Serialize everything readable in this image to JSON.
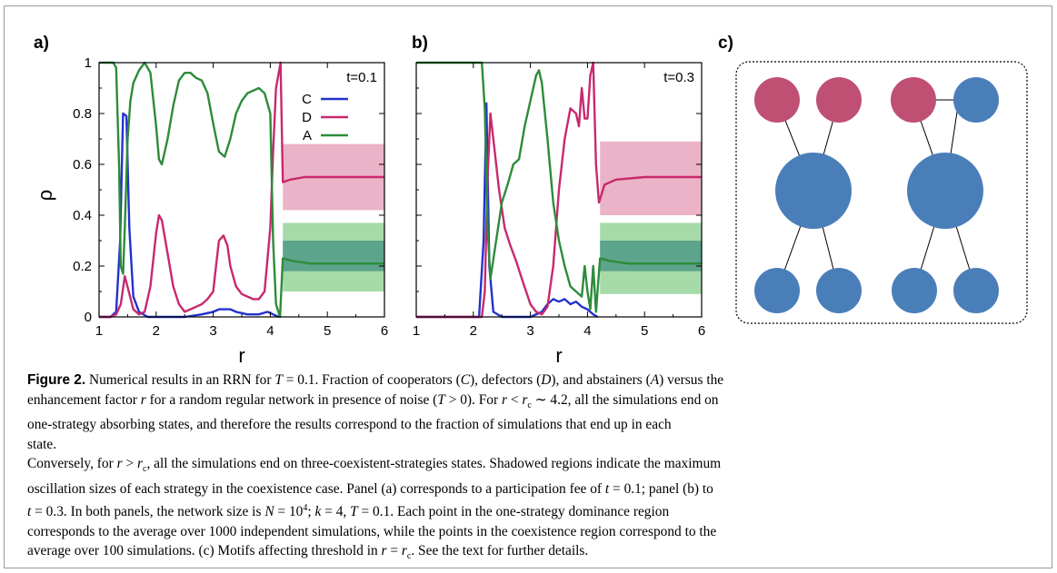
{
  "panels": {
    "a": {
      "label": "a)"
    },
    "b": {
      "label": "b)"
    },
    "c": {
      "label": "c)"
    }
  },
  "colors": {
    "C": "#2233cc",
    "D": "#c8296e",
    "A": "#2e8b3a",
    "D_band": "#e7a6bd",
    "A_band_outer": "#98d49a",
    "A_band_inner": "#4f9a86",
    "node_red": "#c04f74",
    "node_blue": "#4a7eb9"
  },
  "chart_data": [
    {
      "type": "line",
      "panel": "a",
      "annotation": "t=0.1",
      "xlabel": "r",
      "ylabel": "ρ",
      "xlim": [
        1,
        6
      ],
      "ylim": [
        0,
        1
      ],
      "xticks": [
        "1",
        "2",
        "3",
        "4",
        "5",
        "6"
      ],
      "yticks": [
        "0",
        "0.2",
        "0.4",
        "0.6",
        "0.8",
        "1"
      ],
      "legend": {
        "placement": "top-right",
        "entries": [
          "C",
          "D",
          "A"
        ]
      },
      "series": [
        {
          "name": "C",
          "points": [
            [
              1,
              0
            ],
            [
              1.2,
              0
            ],
            [
              1.3,
              0.02
            ],
            [
              1.37,
              0.3
            ],
            [
              1.42,
              0.8
            ],
            [
              1.48,
              0.79
            ],
            [
              1.53,
              0.35
            ],
            [
              1.6,
              0.08
            ],
            [
              1.7,
              0.02
            ],
            [
              1.85,
              0
            ],
            [
              2,
              0
            ],
            [
              2.5,
              0
            ],
            [
              2.8,
              0.01
            ],
            [
              3,
              0.02
            ],
            [
              3.1,
              0.03
            ],
            [
              3.2,
              0.03
            ],
            [
              3.3,
              0.03
            ],
            [
              3.4,
              0.02
            ],
            [
              3.6,
              0.01
            ],
            [
              3.8,
              0.01
            ],
            [
              3.95,
              0.02
            ],
            [
              4.05,
              0.01
            ],
            [
              4.15,
              0
            ]
          ]
        },
        {
          "name": "D",
          "points": [
            [
              1,
              0
            ],
            [
              1.2,
              0
            ],
            [
              1.3,
              0.01
            ],
            [
              1.38,
              0.05
            ],
            [
              1.45,
              0.16
            ],
            [
              1.52,
              0.1
            ],
            [
              1.6,
              0.03
            ],
            [
              1.7,
              0.01
            ],
            [
              1.8,
              0.02
            ],
            [
              1.9,
              0.12
            ],
            [
              2,
              0.33
            ],
            [
              2.05,
              0.4
            ],
            [
              2.1,
              0.38
            ],
            [
              2.2,
              0.25
            ],
            [
              2.3,
              0.12
            ],
            [
              2.4,
              0.05
            ],
            [
              2.5,
              0.02
            ],
            [
              2.6,
              0.03
            ],
            [
              2.7,
              0.04
            ],
            [
              2.8,
              0.05
            ],
            [
              2.9,
              0.07
            ],
            [
              3,
              0.1
            ],
            [
              3.05,
              0.2
            ],
            [
              3.1,
              0.3
            ],
            [
              3.18,
              0.32
            ],
            [
              3.25,
              0.28
            ],
            [
              3.3,
              0.2
            ],
            [
              3.4,
              0.12
            ],
            [
              3.5,
              0.09
            ],
            [
              3.6,
              0.08
            ],
            [
              3.7,
              0.07
            ],
            [
              3.8,
              0.07
            ],
            [
              3.9,
              0.1
            ],
            [
              4,
              0.35
            ],
            [
              4.05,
              0.65
            ],
            [
              4.1,
              0.9
            ],
            [
              4.18,
              1.0
            ],
            [
              4.22,
              0.53
            ],
            [
              4.35,
              0.54
            ],
            [
              4.6,
              0.55
            ],
            [
              5,
              0.55
            ],
            [
              6,
              0.55
            ]
          ]
        },
        {
          "name": "A",
          "points": [
            [
              1,
              1
            ],
            [
              1.25,
              1
            ],
            [
              1.3,
              0.98
            ],
            [
              1.35,
              0.6
            ],
            [
              1.38,
              0.2
            ],
            [
              1.42,
              0.17
            ],
            [
              1.45,
              0.35
            ],
            [
              1.5,
              0.7
            ],
            [
              1.55,
              0.85
            ],
            [
              1.6,
              0.92
            ],
            [
              1.7,
              0.97
            ],
            [
              1.8,
              1.0
            ],
            [
              1.9,
              0.96
            ],
            [
              2,
              0.75
            ],
            [
              2.05,
              0.62
            ],
            [
              2.1,
              0.6
            ],
            [
              2.2,
              0.7
            ],
            [
              2.3,
              0.83
            ],
            [
              2.4,
              0.93
            ],
            [
              2.5,
              0.96
            ],
            [
              2.6,
              0.96
            ],
            [
              2.7,
              0.94
            ],
            [
              2.8,
              0.93
            ],
            [
              2.9,
              0.88
            ],
            [
              3,
              0.76
            ],
            [
              3.1,
              0.65
            ],
            [
              3.2,
              0.63
            ],
            [
              3.3,
              0.7
            ],
            [
              3.4,
              0.8
            ],
            [
              3.5,
              0.85
            ],
            [
              3.6,
              0.88
            ],
            [
              3.7,
              0.89
            ],
            [
              3.8,
              0.9
            ],
            [
              3.9,
              0.88
            ],
            [
              4,
              0.8
            ],
            [
              4.05,
              0.3
            ],
            [
              4.1,
              0.05
            ],
            [
              4.17,
              0
            ],
            [
              4.22,
              0.23
            ],
            [
              4.4,
              0.22
            ],
            [
              4.7,
              0.21
            ],
            [
              6,
              0.21
            ]
          ]
        }
      ],
      "bands": [
        {
          "name": "D",
          "x": [
            4.22,
            6
          ],
          "lower": 0.42,
          "upper": 0.68
        },
        {
          "name": "A",
          "x": [
            4.22,
            6
          ],
          "lower": 0.1,
          "upper": 0.37
        },
        {
          "name": "A",
          "x": [
            4.22,
            6
          ],
          "lower": 0.18,
          "upper": 0.3
        }
      ]
    },
    {
      "type": "line",
      "panel": "b",
      "annotation": "t=0.3",
      "xlabel": "r",
      "ylabel": "",
      "xlim": [
        1,
        6
      ],
      "ylim": [
        0,
        1
      ],
      "xticks": [
        "1",
        "2",
        "3",
        "4",
        "5",
        "6"
      ],
      "yticks": [],
      "series": [
        {
          "name": "C",
          "points": [
            [
              1,
              0
            ],
            [
              2,
              0
            ],
            [
              2.1,
              0
            ],
            [
              2.18,
              0.3
            ],
            [
              2.23,
              0.84
            ],
            [
              2.28,
              0.2
            ],
            [
              2.35,
              0.02
            ],
            [
              2.5,
              0
            ],
            [
              3,
              0
            ],
            [
              3.2,
              0.02
            ],
            [
              3.3,
              0.05
            ],
            [
              3.4,
              0.07
            ],
            [
              3.5,
              0.06
            ],
            [
              3.6,
              0.07
            ],
            [
              3.7,
              0.05
            ],
            [
              3.8,
              0.06
            ],
            [
              3.9,
              0.04
            ],
            [
              4,
              0.03
            ],
            [
              4.1,
              0.01
            ],
            [
              4.18,
              0
            ]
          ]
        },
        {
          "name": "D",
          "points": [
            [
              1,
              0
            ],
            [
              2,
              0
            ],
            [
              2.15,
              0
            ],
            [
              2.2,
              0.1
            ],
            [
              2.25,
              0.55
            ],
            [
              2.3,
              0.8
            ],
            [
              2.35,
              0.7
            ],
            [
              2.45,
              0.5
            ],
            [
              2.55,
              0.35
            ],
            [
              2.65,
              0.28
            ],
            [
              2.75,
              0.22
            ],
            [
              2.85,
              0.15
            ],
            [
              3,
              0.05
            ],
            [
              3.1,
              0.02
            ],
            [
              3.2,
              0.01
            ],
            [
              3.3,
              0.04
            ],
            [
              3.4,
              0.2
            ],
            [
              3.5,
              0.5
            ],
            [
              3.6,
              0.7
            ],
            [
              3.7,
              0.82
            ],
            [
              3.8,
              0.8
            ],
            [
              3.85,
              0.75
            ],
            [
              3.9,
              0.9
            ],
            [
              3.95,
              0.78
            ],
            [
              4.0,
              0.78
            ],
            [
              4.05,
              0.95
            ],
            [
              4.1,
              1.0
            ],
            [
              4.15,
              0.6
            ],
            [
              4.2,
              0.45
            ],
            [
              4.3,
              0.52
            ],
            [
              4.5,
              0.54
            ],
            [
              5,
              0.55
            ],
            [
              6,
              0.55
            ]
          ]
        },
        {
          "name": "A",
          "points": [
            [
              1,
              1
            ],
            [
              2,
              1
            ],
            [
              2.15,
              1
            ],
            [
              2.2,
              0.82
            ],
            [
              2.25,
              0.35
            ],
            [
              2.3,
              0.15
            ],
            [
              2.4,
              0.3
            ],
            [
              2.5,
              0.45
            ],
            [
              2.6,
              0.52
            ],
            [
              2.7,
              0.6
            ],
            [
              2.8,
              0.62
            ],
            [
              2.9,
              0.75
            ],
            [
              3,
              0.85
            ],
            [
              3.1,
              0.95
            ],
            [
              3.15,
              0.97
            ],
            [
              3.2,
              0.92
            ],
            [
              3.3,
              0.7
            ],
            [
              3.4,
              0.45
            ],
            [
              3.5,
              0.3
            ],
            [
              3.6,
              0.2
            ],
            [
              3.7,
              0.12
            ],
            [
              3.8,
              0.1
            ],
            [
              3.9,
              0.08
            ],
            [
              3.95,
              0.2
            ],
            [
              4.0,
              0.1
            ],
            [
              4.05,
              0.03
            ],
            [
              4.1,
              0.2
            ],
            [
              4.15,
              0.02
            ],
            [
              4.22,
              0.23
            ],
            [
              4.4,
              0.22
            ],
            [
              4.7,
              0.21
            ],
            [
              6,
              0.21
            ]
          ]
        }
      ],
      "bands": [
        {
          "name": "D",
          "x": [
            4.22,
            6
          ],
          "lower": 0.4,
          "upper": 0.69
        },
        {
          "name": "A",
          "x": [
            4.22,
            6
          ],
          "lower": 0.09,
          "upper": 0.37
        },
        {
          "name": "A",
          "x": [
            4.22,
            6
          ],
          "lower": 0.18,
          "upper": 0.3
        }
      ]
    }
  ],
  "caption": {
    "lines": [
      [
        {
          "t": "Figure 2.",
          "b": true
        },
        {
          "t": "  Numerical results in an RRN for "
        },
        {
          "t": "T",
          "i": true
        },
        {
          "t": " = 0.1. Fraction of cooperators ("
        },
        {
          "t": "C",
          "i": true
        },
        {
          "t": "), defectors ("
        },
        {
          "t": "D",
          "i": true
        },
        {
          "t": "), and abstainers ("
        },
        {
          "t": "A",
          "i": true
        },
        {
          "t": ") versus the"
        }
      ],
      [
        {
          "t": "enhancement factor "
        },
        {
          "t": "r",
          "i": true
        },
        {
          "t": " for a random regular network in presence of noise ("
        },
        {
          "t": "T",
          "i": true
        },
        {
          "t": " > 0). For "
        },
        {
          "t": "r",
          "i": true
        },
        {
          "t": " < "
        },
        {
          "t": "r",
          "i": true
        },
        {
          "t": "c",
          "sub": true
        },
        {
          "t": " ∼ 4.2, all the simulations end on"
        }
      ],
      [
        {
          "t": "one-strategy absorbing states, and therefore the results correspond to the fraction of simulations that end up in each"
        }
      ],
      [
        {
          "t": "state."
        }
      ],
      [
        {
          "t": "Conversely, for "
        },
        {
          "t": "r",
          "i": true
        },
        {
          "t": " > "
        },
        {
          "t": "r",
          "i": true
        },
        {
          "t": "c",
          "sub": true
        },
        {
          "t": ", all the simulations end on three-coexistent-strategies states. Shadowed regions indicate the maximum"
        }
      ],
      [
        {
          "t": "oscillation sizes of each strategy in the coexistence case. Panel (a) corresponds to a participation fee of "
        },
        {
          "t": "t",
          "i": true
        },
        {
          "t": " = 0.1; panel (b) to"
        }
      ],
      [
        {
          "t": "t",
          "i": true
        },
        {
          "t": " = 0.3. In both panels, the network size is "
        },
        {
          "t": "N",
          "i": true
        },
        {
          "t": " = 10"
        },
        {
          "t": "4",
          "sup": true
        },
        {
          "t": "; "
        },
        {
          "t": "k",
          "i": true
        },
        {
          "t": " = 4, "
        },
        {
          "t": "T",
          "i": true
        },
        {
          "t": " = 0.1. Each point in the one-strategy dominance region"
        }
      ],
      [
        {
          "t": "corresponds to the average over 1000 independent simulations, while the points in the coexistence region correspond to the"
        }
      ],
      [
        {
          "t": "average over 100 simulations. (c) Motifs affecting threshold in "
        },
        {
          "t": "r",
          "i": true
        },
        {
          "t": " = "
        },
        {
          "t": "r",
          "i": true
        },
        {
          "t": "c",
          "sub": true
        },
        {
          "t": ". See the text for further details."
        }
      ]
    ]
  }
}
